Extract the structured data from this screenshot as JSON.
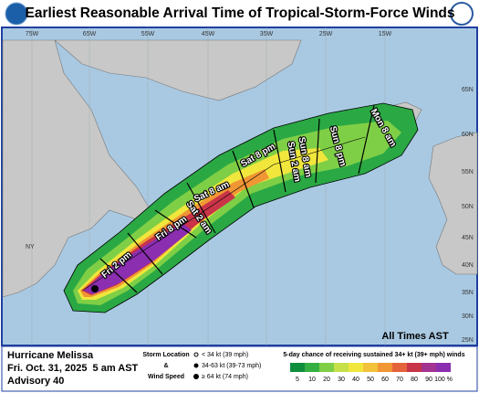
{
  "header": {
    "title": "Earliest Reasonable Arrival Time of Tropical-Storm-Force Winds"
  },
  "map": {
    "longitudes": [
      "75W",
      "65W",
      "55W",
      "45W",
      "35W",
      "25W",
      "15W"
    ],
    "latitudes": [
      "65N",
      "60N",
      "55N",
      "50N",
      "45N",
      "40N",
      "35N",
      "30N",
      "25N"
    ],
    "times": [
      "Fri 2 pm",
      "Fri 8 pm",
      "Sat 2 am",
      "Sat 8 am",
      "Sat 8 pm",
      "Sun 2 am",
      "Sun 8 am",
      "Sun 8 pm",
      "Mon 8 am"
    ],
    "place": "NY",
    "note": "All Times AST"
  },
  "footer": {
    "storm": "Hurricane Melissa",
    "date": "Fri. Oct. 31, 2025  5 am AST",
    "advisory": "Advisory 40",
    "key_title_1": "Storm Location",
    "key_amp": "&",
    "key_title_2": "Wind Speed",
    "key_items": [
      "< 34 kt (39 mph)",
      "34-63 kt (39-73 mph)",
      "≥ 64 kt (74 mph)"
    ],
    "scale_title": "5-day chance of receiving sustained 34+ kt (39+ mph) winds",
    "scale": [
      {
        "label": "5",
        "color": "#0f8f3c"
      },
      {
        "label": "10",
        "color": "#34b043"
      },
      {
        "label": "20",
        "color": "#7fcf46"
      },
      {
        "label": "30",
        "color": "#c6e04a"
      },
      {
        "label": "40",
        "color": "#f1e63c"
      },
      {
        "label": "50",
        "color": "#f2c23a"
      },
      {
        "label": "60",
        "color": "#f19634"
      },
      {
        "label": "70",
        "color": "#e5633a"
      },
      {
        "label": "80",
        "color": "#c93448"
      },
      {
        "label": "90",
        "color": "#a23390"
      },
      {
        "label": "100 %",
        "color": "#8b2eb0"
      }
    ]
  }
}
